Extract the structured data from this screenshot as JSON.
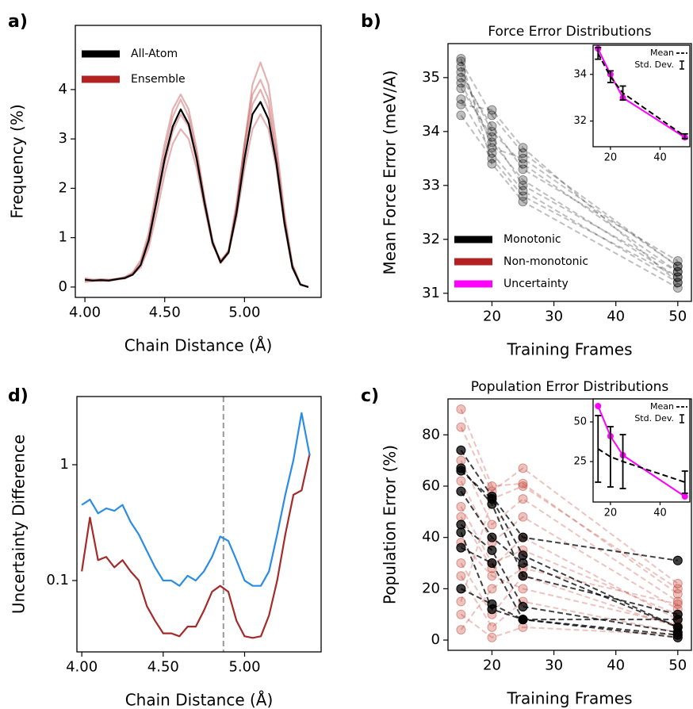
{
  "chart_data": [
    {
      "type": "line",
      "panel_label": "a)",
      "xlabel": "Chain Distance (Å)",
      "ylabel": "Frequency (%)",
      "xlim": [
        3.94,
        5.48
      ],
      "ylim": [
        -0.21,
        5.3
      ],
      "xticks": [
        {
          "value": 4.0,
          "label": "4.00"
        },
        {
          "value": 4.5,
          "label": "4.50"
        },
        {
          "value": 5.0,
          "label": "5.00"
        }
      ],
      "yticks": [
        0,
        1,
        2,
        3,
        4
      ],
      "legend": "upper left",
      "x": [
        4.0,
        4.05,
        4.1,
        4.15,
        4.2,
        4.25,
        4.3,
        4.35,
        4.4,
        4.45,
        4.5,
        4.55,
        4.6,
        4.65,
        4.7,
        4.75,
        4.8,
        4.85,
        4.9,
        4.95,
        5.0,
        5.05,
        5.1,
        5.15,
        5.2,
        5.25,
        5.3,
        5.35,
        5.4
      ],
      "series": [
        {
          "name": "All-Atom",
          "color": "#000000",
          "values": [
            0.15,
            0.13,
            0.14,
            0.13,
            0.16,
            0.18,
            0.25,
            0.45,
            0.95,
            1.75,
            2.6,
            3.25,
            3.6,
            3.3,
            2.6,
            1.7,
            0.9,
            0.5,
            0.7,
            1.5,
            2.6,
            3.5,
            3.75,
            3.4,
            2.5,
            1.3,
            0.4,
            0.05,
            0.0
          ]
        },
        {
          "name": "Ensemble",
          "color": "#b22222",
          "opacity": 0.35,
          "lines": [
            [
              0.1,
              0.12,
              0.13,
              0.12,
              0.15,
              0.2,
              0.3,
              0.55,
              1.1,
              2.0,
              2.9,
              3.6,
              3.9,
              3.6,
              2.8,
              1.8,
              0.95,
              0.5,
              0.75,
              1.7,
              2.9,
              3.9,
              4.2,
              3.8,
              2.7,
              1.4,
              0.45,
              0.06,
              0.0
            ],
            [
              0.18,
              0.15,
              0.16,
              0.15,
              0.17,
              0.2,
              0.25,
              0.4,
              0.8,
              1.5,
              2.3,
              2.9,
              3.2,
              3.0,
              2.4,
              1.6,
              0.85,
              0.55,
              0.7,
              1.4,
              2.4,
              3.2,
              3.5,
              3.2,
              2.4,
              1.25,
              0.38,
              0.05,
              0.0
            ],
            [
              0.12,
              0.14,
              0.12,
              0.14,
              0.15,
              0.17,
              0.28,
              0.5,
              1.0,
              1.85,
              2.75,
              3.45,
              3.8,
              3.45,
              2.7,
              1.75,
              0.9,
              0.52,
              0.72,
              1.6,
              2.75,
              3.7,
              4.0,
              3.6,
              2.6,
              1.35,
              0.42,
              0.05,
              0.0
            ],
            [
              0.14,
              0.13,
              0.15,
              0.14,
              0.16,
              0.19,
              0.26,
              0.45,
              0.9,
              1.7,
              2.5,
              3.15,
              3.5,
              3.25,
              2.55,
              1.65,
              0.88,
              0.48,
              0.68,
              1.6,
              2.9,
              4.1,
              4.55,
              4.1,
              2.9,
              1.5,
              0.45,
              0.06,
              0.0
            ]
          ]
        }
      ]
    },
    {
      "type": "line",
      "panel_label": "b)",
      "title": "Force Error Distributions",
      "xlabel": "Training Frames",
      "ylabel": "Mean Force Error (meV/A)",
      "xlim": [
        12.9,
        52.2
      ],
      "ylim": [
        30.85,
        35.63
      ],
      "xticks": [
        20,
        30,
        40,
        50
      ],
      "yticks": [
        31,
        32,
        33,
        34,
        35
      ],
      "legend": "lower left",
      "x": [
        15,
        20,
        25,
        50
      ],
      "series": [
        {
          "name": "Monotonic",
          "color": "#000000",
          "opacity": 0.25,
          "dashed": true,
          "markers": true,
          "lines": [
            [
              35.3,
              34.3,
              33.6,
              31.5
            ],
            [
              35.1,
              34.0,
              33.4,
              31.4
            ],
            [
              34.9,
              33.8,
              33.1,
              31.3
            ],
            [
              34.6,
              33.6,
              32.9,
              31.2
            ],
            [
              34.3,
              33.5,
              32.8,
              31.3
            ],
            [
              35.0,
              34.1,
              33.3,
              31.6
            ],
            [
              34.8,
              33.9,
              33.0,
              31.4
            ],
            [
              35.2,
              33.7,
              33.5,
              31.5
            ],
            [
              34.5,
              34.4,
              33.7,
              31.2
            ],
            [
              35.35,
              33.4,
              32.7,
              31.1
            ]
          ]
        },
        {
          "name": "Non-monotonic",
          "color": "#b22222"
        },
        {
          "name": "Uncertainty",
          "color": "#ff00ff"
        }
      ],
      "inset": {
        "xlim": [
          13,
          52
        ],
        "ylim": [
          30.9,
          35.25
        ],
        "xticks": [
          20,
          40
        ],
        "yticks": [
          32,
          34
        ],
        "x": [
          15,
          20,
          25,
          50
        ],
        "legend": "upper right",
        "series": [
          {
            "name": "Mean",
            "color": "#000000",
            "dashed": true,
            "values": [
              34.9,
              33.9,
              33.2,
              31.35
            ],
            "errors": [
              0.25,
              0.25,
              0.3,
              0.1
            ],
            "error_name": "Std. Dev."
          },
          {
            "color": "#ff00ff",
            "markers": true,
            "values": [
              35.1,
              34.0,
              33.0,
              31.3
            ]
          }
        ]
      }
    },
    {
      "type": "line",
      "panel_label": "c)",
      "title": "Population Error Distributions",
      "xlabel": "Training Frames",
      "ylabel": "Population Error (%)",
      "xlim": [
        12.9,
        52.2
      ],
      "ylim": [
        -4,
        94
      ],
      "xticks": [
        20,
        30,
        40,
        50
      ],
      "yticks": [
        0,
        20,
        40,
        60,
        80
      ],
      "x": [
        15,
        20,
        25,
        50
      ],
      "series": [
        {
          "color": "#000000",
          "opacity": 0.75,
          "dashed": true,
          "markers": true,
          "lines": [
            [
              74,
              56,
              40,
              31
            ],
            [
              67,
              53,
              25,
              10
            ],
            [
              58,
              40,
              30,
              5
            ],
            [
              45,
              35,
              13,
              3
            ],
            [
              36,
              30,
              8,
              1
            ],
            [
              20,
              14,
              8,
              8
            ],
            [
              66,
              55,
              33,
              5
            ],
            [
              42,
              12,
              8,
              2
            ]
          ]
        },
        {
          "color": "#c0392b",
          "opacity": 0.3,
          "dashed": true,
          "markers": true,
          "lines": [
            [
              90,
              60,
              61,
              18
            ],
            [
              83,
              58,
              67,
              22
            ],
            [
              70,
              45,
              55,
              15
            ],
            [
              62,
              38,
              48,
              12
            ],
            [
              52,
              30,
              35,
              10
            ],
            [
              38,
              25,
              20,
              6
            ],
            [
              30,
              10,
              25,
              5
            ],
            [
              25,
              5,
              15,
              3
            ],
            [
              10,
              1,
              5,
              2
            ],
            [
              4,
              20,
              28,
              14
            ],
            [
              15,
              55,
              60,
              20
            ],
            [
              48,
              28,
              40,
              8
            ]
          ]
        }
      ],
      "inset": {
        "xlim": [
          13,
          52
        ],
        "ylim": [
          -0.5,
          64.5
        ],
        "xticks": [
          20,
          40
        ],
        "yticks": [
          25,
          50
        ],
        "x": [
          15,
          20,
          25,
          50
        ],
        "legend": "upper right",
        "series": [
          {
            "name": "Mean",
            "color": "#000000",
            "dashed": true,
            "values": [
              33,
              28,
              25,
              12
            ],
            "errors": [
              21,
              19,
              17,
              7
            ],
            "error_name": "Std. Dev."
          },
          {
            "color": "#ff00ff",
            "markers": true,
            "values": [
              60,
              41,
              29,
              3
            ]
          }
        ]
      }
    },
    {
      "type": "line",
      "panel_label": "d)",
      "xlabel": "Chain Distance (Å)",
      "ylabel": "Uncertainty Difference",
      "xlim": [
        3.97,
        5.47
      ],
      "ylim": [
        0.0242,
        3.88
      ],
      "log_y": true,
      "xticks": [
        {
          "value": 4.0,
          "label": "4.00"
        },
        {
          "value": 4.5,
          "label": "4.50"
        },
        {
          "value": 5.0,
          "label": "5.00"
        }
      ],
      "yticks": [
        0.1,
        1
      ],
      "vline": 4.87,
      "x": [
        4.0,
        4.05,
        4.1,
        4.15,
        4.2,
        4.25,
        4.3,
        4.35,
        4.4,
        4.45,
        4.5,
        4.55,
        4.6,
        4.65,
        4.7,
        4.75,
        4.8,
        4.85,
        4.9,
        4.95,
        5.0,
        5.05,
        5.1,
        5.15,
        5.2,
        5.25,
        5.3,
        5.35,
        5.4
      ],
      "series": [
        {
          "color": "#2b8ce6",
          "values": [
            0.45,
            0.5,
            0.38,
            0.42,
            0.4,
            0.45,
            0.32,
            0.25,
            0.18,
            0.13,
            0.1,
            0.1,
            0.09,
            0.11,
            0.1,
            0.12,
            0.16,
            0.24,
            0.22,
            0.15,
            0.1,
            0.09,
            0.09,
            0.12,
            0.25,
            0.55,
            1.1,
            2.8,
            1.2
          ]
        },
        {
          "color": "#a52a2a",
          "values": [
            0.12,
            0.35,
            0.15,
            0.16,
            0.13,
            0.15,
            0.12,
            0.1,
            0.06,
            0.045,
            0.035,
            0.035,
            0.033,
            0.04,
            0.04,
            0.055,
            0.08,
            0.09,
            0.08,
            0.045,
            0.033,
            0.032,
            0.033,
            0.05,
            0.1,
            0.25,
            0.55,
            0.6,
            1.25
          ]
        }
      ]
    }
  ]
}
